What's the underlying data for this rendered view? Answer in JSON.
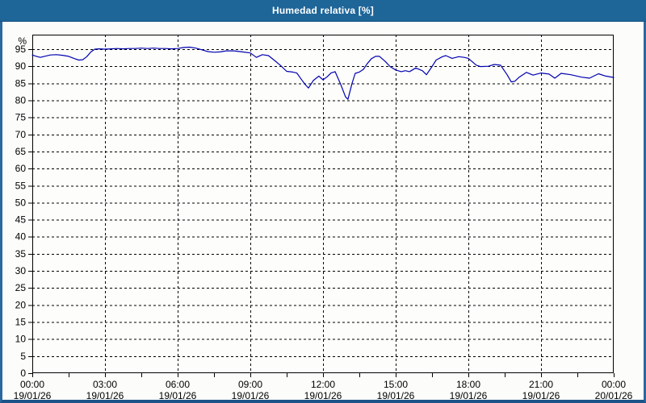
{
  "window": {
    "title": "Humedad relativa [%]"
  },
  "colors": {
    "titlebar_bg": "#1E6598",
    "titlebar_edge": "#15507F",
    "titlebar_text": "#FFFFFF",
    "window_border": "#2A689F",
    "window_border_dark": "#1D5488",
    "content_bg": "#FCFDFA",
    "plot_bg": "#FDFEFB",
    "grid_color": "#000000",
    "axis_color": "#000000",
    "line_color": "#0000B0"
  },
  "chart_data": {
    "type": "line",
    "title": "Humedad relativa [%]",
    "xlabel": "",
    "ylabel": "%",
    "ylim": [
      0,
      99.3
    ],
    "xlim_hours": [
      0,
      24
    ],
    "grid": "dashed",
    "legend": "none",
    "y_ticks": [
      0,
      5,
      10,
      15,
      20,
      25,
      30,
      35,
      40,
      45,
      50,
      55,
      60,
      65,
      70,
      75,
      80,
      85,
      90,
      95
    ],
    "x_minor_tick_step_hours": 1.5,
    "x_ticks": [
      {
        "hour": 0,
        "time": "00:00",
        "date": "19/01/26"
      },
      {
        "hour": 3,
        "time": "03:00",
        "date": "19/01/26"
      },
      {
        "hour": 6,
        "time": "06:00",
        "date": "19/01/26"
      },
      {
        "hour": 9,
        "time": "09:00",
        "date": "19/01/26"
      },
      {
        "hour": 12,
        "time": "12:00",
        "date": "19/01/26"
      },
      {
        "hour": 15,
        "time": "15:00",
        "date": "19/01/26"
      },
      {
        "hour": 18,
        "time": "18:00",
        "date": "19/01/26"
      },
      {
        "hour": 21,
        "time": "21:00",
        "date": "19/01/26"
      },
      {
        "hour": 24,
        "time": "00:00",
        "date": "20/01/26"
      }
    ],
    "series": [
      {
        "name": "Humedad relativa",
        "unit": "%",
        "color": "#0000B0",
        "points": [
          [
            0.0,
            93.3
          ],
          [
            0.17,
            92.9
          ],
          [
            0.33,
            92.6
          ],
          [
            0.5,
            92.9
          ],
          [
            0.75,
            93.3
          ],
          [
            1.0,
            93.4
          ],
          [
            1.25,
            93.2
          ],
          [
            1.5,
            92.9
          ],
          [
            1.75,
            92.2
          ],
          [
            1.92,
            91.8
          ],
          [
            2.08,
            91.9
          ],
          [
            2.25,
            92.8
          ],
          [
            2.42,
            94.2
          ],
          [
            2.58,
            95.0
          ],
          [
            2.75,
            95.1
          ],
          [
            3.0,
            95.0
          ],
          [
            3.25,
            95.1
          ],
          [
            3.5,
            95.2
          ],
          [
            3.75,
            95.1
          ],
          [
            4.0,
            95.2
          ],
          [
            4.25,
            95.2
          ],
          [
            4.5,
            95.3
          ],
          [
            4.75,
            95.2
          ],
          [
            5.0,
            95.3
          ],
          [
            5.25,
            95.2
          ],
          [
            5.5,
            95.2
          ],
          [
            5.75,
            95.1
          ],
          [
            6.0,
            95.2
          ],
          [
            6.25,
            95.5
          ],
          [
            6.5,
            95.6
          ],
          [
            6.75,
            95.3
          ],
          [
            7.0,
            94.8
          ],
          [
            7.25,
            94.3
          ],
          [
            7.5,
            94.1
          ],
          [
            7.75,
            94.2
          ],
          [
            8.0,
            94.5
          ],
          [
            8.33,
            94.5
          ],
          [
            8.67,
            94.2
          ],
          [
            9.0,
            93.9
          ],
          [
            9.25,
            92.6
          ],
          [
            9.5,
            93.4
          ],
          [
            9.75,
            93.1
          ],
          [
            10.0,
            91.7
          ],
          [
            10.25,
            90.2
          ],
          [
            10.5,
            88.5
          ],
          [
            10.75,
            88.3
          ],
          [
            10.92,
            88.0
          ],
          [
            11.1,
            86.2
          ],
          [
            11.27,
            84.6
          ],
          [
            11.4,
            83.6
          ],
          [
            11.6,
            85.8
          ],
          [
            11.83,
            87.1
          ],
          [
            12.0,
            86.0
          ],
          [
            12.17,
            86.9
          ],
          [
            12.33,
            88.0
          ],
          [
            12.5,
            88.4
          ],
          [
            12.73,
            84.7
          ],
          [
            12.93,
            81.0
          ],
          [
            13.03,
            80.3
          ],
          [
            13.2,
            85.0
          ],
          [
            13.33,
            87.9
          ],
          [
            13.5,
            88.3
          ],
          [
            13.67,
            89.1
          ],
          [
            13.83,
            90.8
          ],
          [
            14.0,
            92.2
          ],
          [
            14.17,
            92.9
          ],
          [
            14.33,
            92.9
          ],
          [
            14.57,
            91.4
          ],
          [
            14.77,
            89.9
          ],
          [
            15.0,
            88.9
          ],
          [
            15.23,
            88.4
          ],
          [
            15.4,
            88.7
          ],
          [
            15.57,
            88.4
          ],
          [
            15.83,
            89.5
          ],
          [
            16.1,
            88.7
          ],
          [
            16.27,
            87.5
          ],
          [
            16.5,
            89.9
          ],
          [
            16.67,
            91.8
          ],
          [
            16.93,
            92.8
          ],
          [
            17.07,
            93.1
          ],
          [
            17.33,
            92.3
          ],
          [
            17.6,
            92.8
          ],
          [
            17.83,
            92.6
          ],
          [
            18.0,
            92.3
          ],
          [
            18.33,
            90.3
          ],
          [
            18.5,
            89.9
          ],
          [
            18.83,
            90.0
          ],
          [
            19.07,
            90.5
          ],
          [
            19.33,
            90.3
          ],
          [
            19.6,
            87.5
          ],
          [
            19.77,
            85.4
          ],
          [
            19.92,
            85.6
          ],
          [
            20.1,
            86.8
          ],
          [
            20.4,
            88.2
          ],
          [
            20.67,
            87.4
          ],
          [
            21.0,
            88.0
          ],
          [
            21.33,
            87.7
          ],
          [
            21.57,
            86.5
          ],
          [
            21.83,
            87.9
          ],
          [
            22.23,
            87.5
          ],
          [
            22.67,
            86.8
          ],
          [
            23.0,
            86.5
          ],
          [
            23.37,
            87.8
          ],
          [
            23.67,
            87.1
          ],
          [
            24.0,
            86.7
          ]
        ]
      }
    ]
  }
}
